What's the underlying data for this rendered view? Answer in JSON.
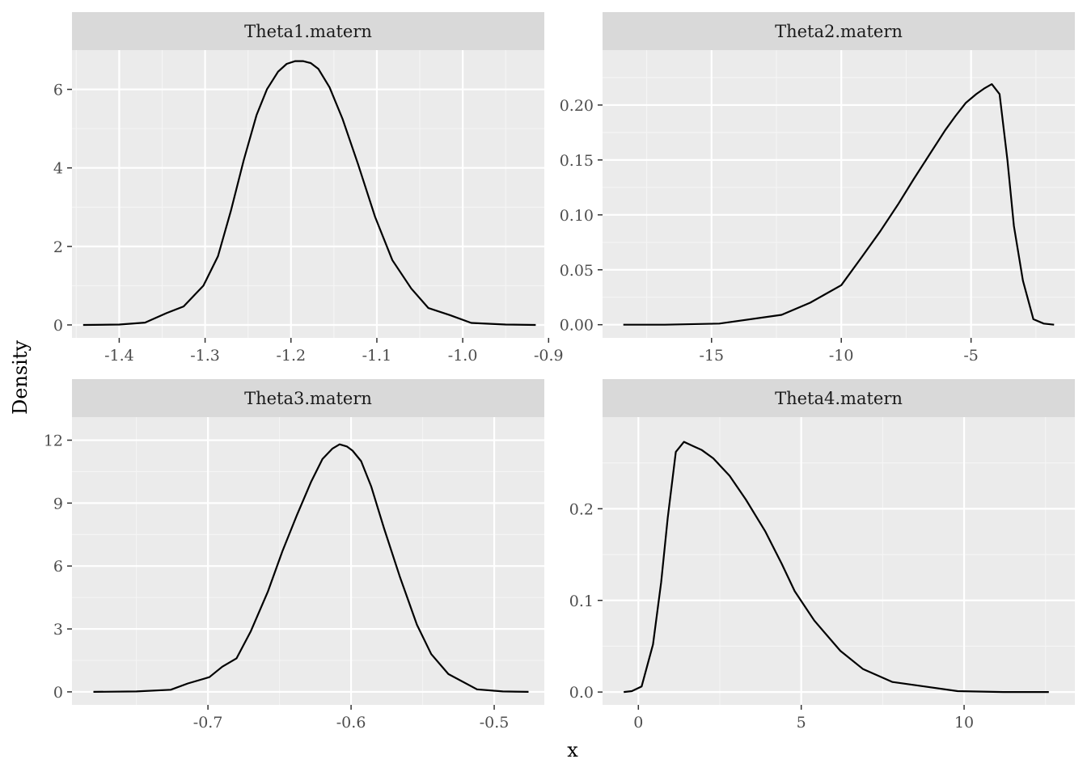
{
  "figure": {
    "xlabel": "x",
    "ylabel": "Density"
  },
  "colors": {
    "panel_background": "#EBEBEB",
    "strip_background": "#D9D9D9",
    "grid_major": "#FFFFFF",
    "grid_minor": "#F5F5F5",
    "line": "#000000",
    "tick": "#333333",
    "text": "#4D4D4D"
  },
  "chart_data": [
    {
      "type": "line",
      "title": "Theta1.matern",
      "xlim": [
        -1.455,
        -0.905
      ],
      "ylim": [
        -0.33,
        7.0
      ],
      "xticks": [
        -1.4,
        -1.3,
        -1.2,
        -1.1,
        -1.0,
        -0.9
      ],
      "xtick_labels": [
        "-1.4",
        "-1.3",
        "-1.2",
        "-1.1",
        "-1.0",
        "-0.9"
      ],
      "xminor": [
        -1.45,
        -1.35,
        -1.25,
        -1.15,
        -1.05,
        -0.95
      ],
      "yticks": [
        0,
        2,
        4,
        6
      ],
      "ytick_labels": [
        "0",
        "2",
        "4",
        "6"
      ],
      "yminor": [
        1,
        3,
        5
      ],
      "x": [
        -1.442,
        -1.4,
        -1.37,
        -1.345,
        -1.325,
        -1.302,
        -1.285,
        -1.27,
        -1.255,
        -1.24,
        -1.228,
        -1.215,
        -1.205,
        -1.195,
        -1.186,
        -1.177,
        -1.168,
        -1.155,
        -1.14,
        -1.122,
        -1.102,
        -1.082,
        -1.06,
        -1.04,
        -1.015,
        -0.99,
        -0.95,
        -0.915
      ],
      "y": [
        0.0,
        0.01,
        0.06,
        0.3,
        0.47,
        1.0,
        1.75,
        2.9,
        4.2,
        5.35,
        6.0,
        6.45,
        6.65,
        6.72,
        6.72,
        6.67,
        6.52,
        6.05,
        5.25,
        4.1,
        2.75,
        1.65,
        0.93,
        0.43,
        0.25,
        0.05,
        0.01,
        0.0
      ]
    },
    {
      "type": "line",
      "title": "Theta2.matern",
      "xlim": [
        -19.2,
        -1.0
      ],
      "ylim": [
        -0.012,
        0.25
      ],
      "xticks": [
        -15,
        -10,
        -5
      ],
      "xtick_labels": [
        "-15",
        "-10",
        "-5"
      ],
      "xminor": [
        -17.5,
        -12.5,
        -7.5,
        -2.5
      ],
      "yticks": [
        0.0,
        0.05,
        0.1,
        0.15,
        0.2
      ],
      "ytick_labels": [
        "0.00",
        "0.05",
        "0.10",
        "0.15",
        "0.20"
      ],
      "yminor": [
        0.025,
        0.075,
        0.125,
        0.175,
        0.225
      ],
      "x": [
        -18.4,
        -16.8,
        -14.7,
        -12.3,
        -11.2,
        -10.0,
        -9.2,
        -8.5,
        -7.8,
        -7.2,
        -6.6,
        -6.0,
        -5.6,
        -5.2,
        -4.8,
        -4.5,
        -4.2,
        -3.9,
        -3.6,
        -3.35,
        -3.0,
        -2.6,
        -2.2,
        -1.8
      ],
      "y": [
        0.0,
        0.0,
        0.001,
        0.009,
        0.02,
        0.036,
        0.062,
        0.085,
        0.11,
        0.133,
        0.155,
        0.177,
        0.19,
        0.202,
        0.21,
        0.215,
        0.219,
        0.21,
        0.15,
        0.09,
        0.04,
        0.005,
        0.001,
        0.0
      ]
    },
    {
      "type": "line",
      "title": "Theta3.matern",
      "xlim": [
        -0.795,
        -0.465
      ],
      "ylim": [
        -0.62,
        13.1
      ],
      "xticks": [
        -0.7,
        -0.6,
        -0.5
      ],
      "xtick_labels": [
        "-0.7",
        "-0.6",
        "-0.5"
      ],
      "xminor": [
        -0.75,
        -0.65,
        -0.55
      ],
      "yticks": [
        0,
        3,
        6,
        9,
        12
      ],
      "ytick_labels": [
        "0",
        "3",
        "6",
        "9",
        "12"
      ],
      "yminor": [
        1.5,
        4.5,
        7.5,
        10.5
      ],
      "x": [
        -0.78,
        -0.75,
        -0.726,
        -0.714,
        -0.699,
        -0.69,
        -0.68,
        -0.67,
        -0.658,
        -0.648,
        -0.638,
        -0.628,
        -0.62,
        -0.613,
        -0.608,
        -0.603,
        -0.599,
        -0.593,
        -0.586,
        -0.577,
        -0.566,
        -0.554,
        -0.544,
        -0.532,
        -0.512,
        -0.494,
        -0.476
      ],
      "y": [
        0.0,
        0.02,
        0.1,
        0.4,
        0.7,
        1.2,
        1.6,
        2.9,
        4.8,
        6.7,
        8.4,
        10.0,
        11.1,
        11.6,
        11.8,
        11.7,
        11.5,
        11.0,
        9.8,
        7.8,
        5.5,
        3.2,
        1.8,
        0.85,
        0.12,
        0.02,
        0.0
      ]
    },
    {
      "type": "line",
      "title": "Theta4.matern",
      "xlim": [
        -1.1,
        13.4
      ],
      "ylim": [
        -0.014,
        0.3
      ],
      "xticks": [
        0,
        5,
        10
      ],
      "xtick_labels": [
        "0",
        "5",
        "10"
      ],
      "xminor": [
        -2.5,
        2.5,
        7.5,
        12.5
      ],
      "yticks": [
        0.0,
        0.1,
        0.2
      ],
      "ytick_labels": [
        "0.0",
        "0.1",
        "0.2"
      ],
      "yminor": [
        0.05,
        0.15,
        0.25
      ],
      "x": [
        -0.45,
        -0.2,
        0.1,
        0.45,
        0.7,
        0.9,
        1.15,
        1.4,
        1.7,
        1.95,
        2.3,
        2.8,
        3.3,
        3.9,
        4.4,
        4.8,
        5.4,
        6.2,
        6.9,
        7.8,
        8.8,
        9.8,
        11.2,
        12.6
      ],
      "y": [
        0.0,
        0.001,
        0.006,
        0.052,
        0.12,
        0.19,
        0.262,
        0.273,
        0.268,
        0.264,
        0.255,
        0.236,
        0.21,
        0.175,
        0.14,
        0.11,
        0.078,
        0.045,
        0.025,
        0.011,
        0.006,
        0.001,
        0.0,
        0.0
      ]
    }
  ]
}
